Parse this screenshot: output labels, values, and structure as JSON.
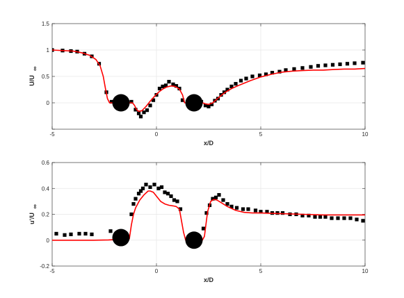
{
  "chart_data": [
    {
      "type": "scatter",
      "xlabel": "x/D",
      "ylabel_main": "U/U",
      "ylabel_sub": "∞",
      "xlim": [
        -5,
        10
      ],
      "ylim": [
        -0.5,
        1.5
      ],
      "xticks": [
        -5,
        0,
        5,
        10
      ],
      "yticks": [
        -0.5,
        0,
        0.5,
        1,
        1.5
      ],
      "xtick_labels": [
        "-5",
        "0",
        "5",
        "10"
      ],
      "ytick_labels": [
        "",
        "0",
        "0.5",
        "1",
        "1.5"
      ],
      "grid": true,
      "cylinders": [
        {
          "x": -1.7,
          "y": 0.0
        },
        {
          "x": 1.8,
          "y": 0.0
        }
      ],
      "series": [
        {
          "kind": "markers",
          "marker": "square",
          "color": "#000000",
          "points": [
            [
              -5.0,
              1.0
            ],
            [
              -4.5,
              0.99
            ],
            [
              -4.1,
              0.98
            ],
            [
              -3.8,
              0.97
            ],
            [
              -3.45,
              0.93
            ],
            [
              -3.1,
              0.88
            ],
            [
              -2.75,
              0.74
            ],
            [
              -2.4,
              0.2
            ],
            [
              -2.15,
              0.02
            ],
            [
              -1.2,
              0.02
            ],
            [
              -1.0,
              -0.13
            ],
            [
              -0.85,
              -0.2
            ],
            [
              -0.75,
              -0.26
            ],
            [
              -0.6,
              -0.18
            ],
            [
              -0.45,
              -0.14
            ],
            [
              -0.3,
              -0.05
            ],
            [
              -0.15,
              0.05
            ],
            [
              0.0,
              0.15
            ],
            [
              0.15,
              0.27
            ],
            [
              0.3,
              0.31
            ],
            [
              0.45,
              0.33
            ],
            [
              0.6,
              0.4
            ],
            [
              0.8,
              0.35
            ],
            [
              0.95,
              0.32
            ],
            [
              1.1,
              0.27
            ],
            [
              1.25,
              0.05
            ],
            [
              2.15,
              0.02
            ],
            [
              2.35,
              -0.05
            ],
            [
              2.5,
              -0.07
            ],
            [
              2.65,
              -0.03
            ],
            [
              2.8,
              0.04
            ],
            [
              2.95,
              0.08
            ],
            [
              3.1,
              0.15
            ],
            [
              3.25,
              0.2
            ],
            [
              3.4,
              0.25
            ],
            [
              3.6,
              0.31
            ],
            [
              3.8,
              0.36
            ],
            [
              4.05,
              0.42
            ],
            [
              4.3,
              0.46
            ],
            [
              4.6,
              0.5
            ],
            [
              4.95,
              0.52
            ],
            [
              5.25,
              0.54
            ],
            [
              5.55,
              0.57
            ],
            [
              5.9,
              0.59
            ],
            [
              6.2,
              0.62
            ],
            [
              6.6,
              0.64
            ],
            [
              7.0,
              0.66
            ],
            [
              7.4,
              0.68
            ],
            [
              7.75,
              0.7
            ],
            [
              8.1,
              0.71
            ],
            [
              8.45,
              0.72
            ],
            [
              8.8,
              0.73
            ],
            [
              9.15,
              0.74
            ],
            [
              9.5,
              0.75
            ],
            [
              9.9,
              0.76
            ]
          ]
        },
        {
          "kind": "line",
          "color": "#ff0000",
          "points": [
            [
              -5.0,
              1.0
            ],
            [
              -4.5,
              0.99
            ],
            [
              -4.0,
              0.98
            ],
            [
              -3.6,
              0.95
            ],
            [
              -3.2,
              0.9
            ],
            [
              -2.9,
              0.82
            ],
            [
              -2.7,
              0.7
            ],
            [
              -2.55,
              0.5
            ],
            [
              -2.45,
              0.28
            ],
            [
              -2.35,
              0.08
            ],
            [
              -2.25,
              0.0
            ],
            [
              -1.15,
              0.0
            ],
            [
              -1.05,
              -0.05
            ],
            [
              -0.95,
              -0.13
            ],
            [
              -0.85,
              -0.16
            ],
            [
              -0.7,
              -0.15
            ],
            [
              -0.5,
              -0.07
            ],
            [
              -0.3,
              0.03
            ],
            [
              -0.1,
              0.12
            ],
            [
              0.1,
              0.2
            ],
            [
              0.3,
              0.26
            ],
            [
              0.5,
              0.3
            ],
            [
              0.7,
              0.32
            ],
            [
              0.9,
              0.31
            ],
            [
              1.1,
              0.26
            ],
            [
              1.25,
              0.15
            ],
            [
              1.35,
              0.0
            ],
            [
              2.2,
              0.0
            ],
            [
              2.35,
              -0.02
            ],
            [
              2.5,
              -0.03
            ],
            [
              2.7,
              0.0
            ],
            [
              2.9,
              0.07
            ],
            [
              3.1,
              0.14
            ],
            [
              3.3,
              0.2
            ],
            [
              3.6,
              0.27
            ],
            [
              4.0,
              0.34
            ],
            [
              4.5,
              0.42
            ],
            [
              5.0,
              0.49
            ],
            [
              5.5,
              0.54
            ],
            [
              6.0,
              0.58
            ],
            [
              6.5,
              0.6
            ],
            [
              7.0,
              0.61
            ],
            [
              7.5,
              0.62
            ],
            [
              8.0,
              0.62
            ],
            [
              8.5,
              0.63
            ],
            [
              9.0,
              0.64
            ],
            [
              9.5,
              0.64
            ],
            [
              10.0,
              0.65
            ]
          ]
        }
      ]
    },
    {
      "type": "scatter",
      "xlabel": "x/D",
      "ylabel_main": "u'/U",
      "ylabel_sub": "∞",
      "xlim": [
        -5,
        10
      ],
      "ylim": [
        -0.2,
        0.6
      ],
      "xticks": [
        -5,
        0,
        5,
        10
      ],
      "yticks": [
        -0.2,
        0,
        0.2,
        0.4,
        0.6
      ],
      "xtick_labels": [
        "-5",
        "0",
        "5",
        "10"
      ],
      "ytick_labels": [
        "-0.2",
        "0",
        "0.2",
        "0.4",
        "0.6"
      ],
      "grid": true,
      "cylinders": [
        {
          "x": -1.7,
          "y": 0.02
        },
        {
          "x": 1.8,
          "y": 0.0
        }
      ],
      "series": [
        {
          "kind": "markers",
          "marker": "square",
          "color": "#000000",
          "points": [
            [
              -4.8,
              0.05
            ],
            [
              -4.4,
              0.04
            ],
            [
              -4.1,
              0.045
            ],
            [
              -3.7,
              0.05
            ],
            [
              -3.4,
              0.05
            ],
            [
              -3.1,
              0.045
            ],
            [
              -2.2,
              0.07
            ],
            [
              -1.2,
              0.2
            ],
            [
              -1.1,
              0.28
            ],
            [
              -1.0,
              0.32
            ],
            [
              -0.85,
              0.36
            ],
            [
              -0.75,
              0.38
            ],
            [
              -0.65,
              0.4
            ],
            [
              -0.5,
              0.43
            ],
            [
              -0.3,
              0.41
            ],
            [
              -0.1,
              0.43
            ],
            [
              0.1,
              0.4
            ],
            [
              0.25,
              0.41
            ],
            [
              0.4,
              0.37
            ],
            [
              0.55,
              0.36
            ],
            [
              0.7,
              0.34
            ],
            [
              0.85,
              0.31
            ],
            [
              1.0,
              0.3
            ],
            [
              1.15,
              0.24
            ],
            [
              2.25,
              0.09
            ],
            [
              2.4,
              0.21
            ],
            [
              2.55,
              0.27
            ],
            [
              2.7,
              0.32
            ],
            [
              2.85,
              0.33
            ],
            [
              3.0,
              0.35
            ],
            [
              3.2,
              0.31
            ],
            [
              3.4,
              0.28
            ],
            [
              3.6,
              0.26
            ],
            [
              3.85,
              0.25
            ],
            [
              4.15,
              0.24
            ],
            [
              4.4,
              0.24
            ],
            [
              4.75,
              0.23
            ],
            [
              5.0,
              0.22
            ],
            [
              5.3,
              0.22
            ],
            [
              5.55,
              0.21
            ],
            [
              5.8,
              0.21
            ],
            [
              6.05,
              0.21
            ],
            [
              6.4,
              0.2
            ],
            [
              6.7,
              0.2
            ],
            [
              7.0,
              0.19
            ],
            [
              7.3,
              0.19
            ],
            [
              7.6,
              0.18
            ],
            [
              7.85,
              0.18
            ],
            [
              8.1,
              0.18
            ],
            [
              8.4,
              0.17
            ],
            [
              8.7,
              0.17
            ],
            [
              9.0,
              0.17
            ],
            [
              9.3,
              0.17
            ],
            [
              9.6,
              0.16
            ],
            [
              9.9,
              0.15
            ]
          ]
        },
        {
          "kind": "line",
          "color": "#ff0000",
          "points": [
            [
              -5.0,
              0.0
            ],
            [
              -4.0,
              0.0
            ],
            [
              -3.0,
              0.0
            ],
            [
              -2.3,
              0.002
            ],
            [
              -1.3,
              0.01
            ],
            [
              -1.2,
              0.12
            ],
            [
              -1.1,
              0.2
            ],
            [
              -1.0,
              0.25
            ],
            [
              -0.8,
              0.31
            ],
            [
              -0.6,
              0.35
            ],
            [
              -0.4,
              0.38
            ],
            [
              -0.3,
              0.38
            ],
            [
              -0.15,
              0.37
            ],
            [
              0.0,
              0.34
            ],
            [
              0.2,
              0.3
            ],
            [
              0.4,
              0.28
            ],
            [
              0.6,
              0.27
            ],
            [
              0.8,
              0.265
            ],
            [
              0.95,
              0.26
            ],
            [
              1.1,
              0.24
            ],
            [
              1.2,
              0.15
            ],
            [
              1.3,
              0.06
            ],
            [
              1.4,
              0.0
            ],
            [
              2.2,
              0.0
            ],
            [
              2.3,
              0.03
            ],
            [
              2.45,
              0.22
            ],
            [
              2.6,
              0.3
            ],
            [
              2.75,
              0.315
            ],
            [
              2.9,
              0.31
            ],
            [
              3.1,
              0.29
            ],
            [
              3.4,
              0.26
            ],
            [
              3.8,
              0.23
            ],
            [
              4.2,
              0.215
            ],
            [
              4.6,
              0.21
            ],
            [
              5.0,
              0.21
            ],
            [
              6.0,
              0.205
            ],
            [
              7.0,
              0.2
            ],
            [
              8.0,
              0.195
            ],
            [
              9.0,
              0.195
            ],
            [
              10.0,
              0.195
            ]
          ]
        }
      ]
    }
  ]
}
